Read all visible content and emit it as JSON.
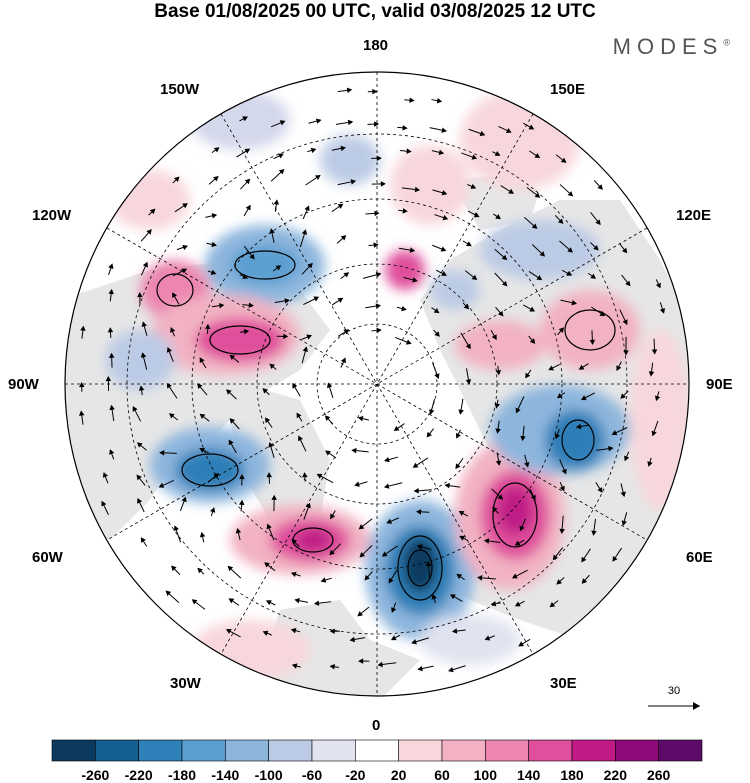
{
  "title": "Base 01/08/2025 00 UTC, valid 03/08/2025 12 UTC",
  "logo": "MODES",
  "logo_mark": "®",
  "longitude_labels": {
    "lon_180": "180",
    "lon_150w": "150W",
    "lon_150e": "150E",
    "lon_120w": "120W",
    "lon_120e": "120E",
    "lon_90w": "90W",
    "lon_90e": "90E",
    "lon_60w": "60W",
    "lon_60e": "60E",
    "lon_30w": "30W",
    "lon_30e": "30E",
    "lon_0": "0"
  },
  "vector_reference": "30",
  "colorbar": {
    "ticks": [
      "-260",
      "-220",
      "-180",
      "-140",
      "-100",
      "-60",
      "-20",
      "20",
      "60",
      "100",
      "140",
      "180",
      "220",
      "260"
    ],
    "colors": [
      "#0b3a5e",
      "#145f91",
      "#2f7fb8",
      "#5a9fd0",
      "#8db6dd",
      "#bccbe5",
      "#e1e3f0",
      "#ffffff",
      "#f8d7dc",
      "#f2b2c3",
      "#ec86b0",
      "#df4f9b",
      "#c01a86",
      "#8f0a78",
      "#5e0a6a"
    ]
  },
  "colors": {
    "land": "#e8e8e8",
    "neg_strong": "#145f91",
    "pos_strong": "#c01a86"
  }
}
